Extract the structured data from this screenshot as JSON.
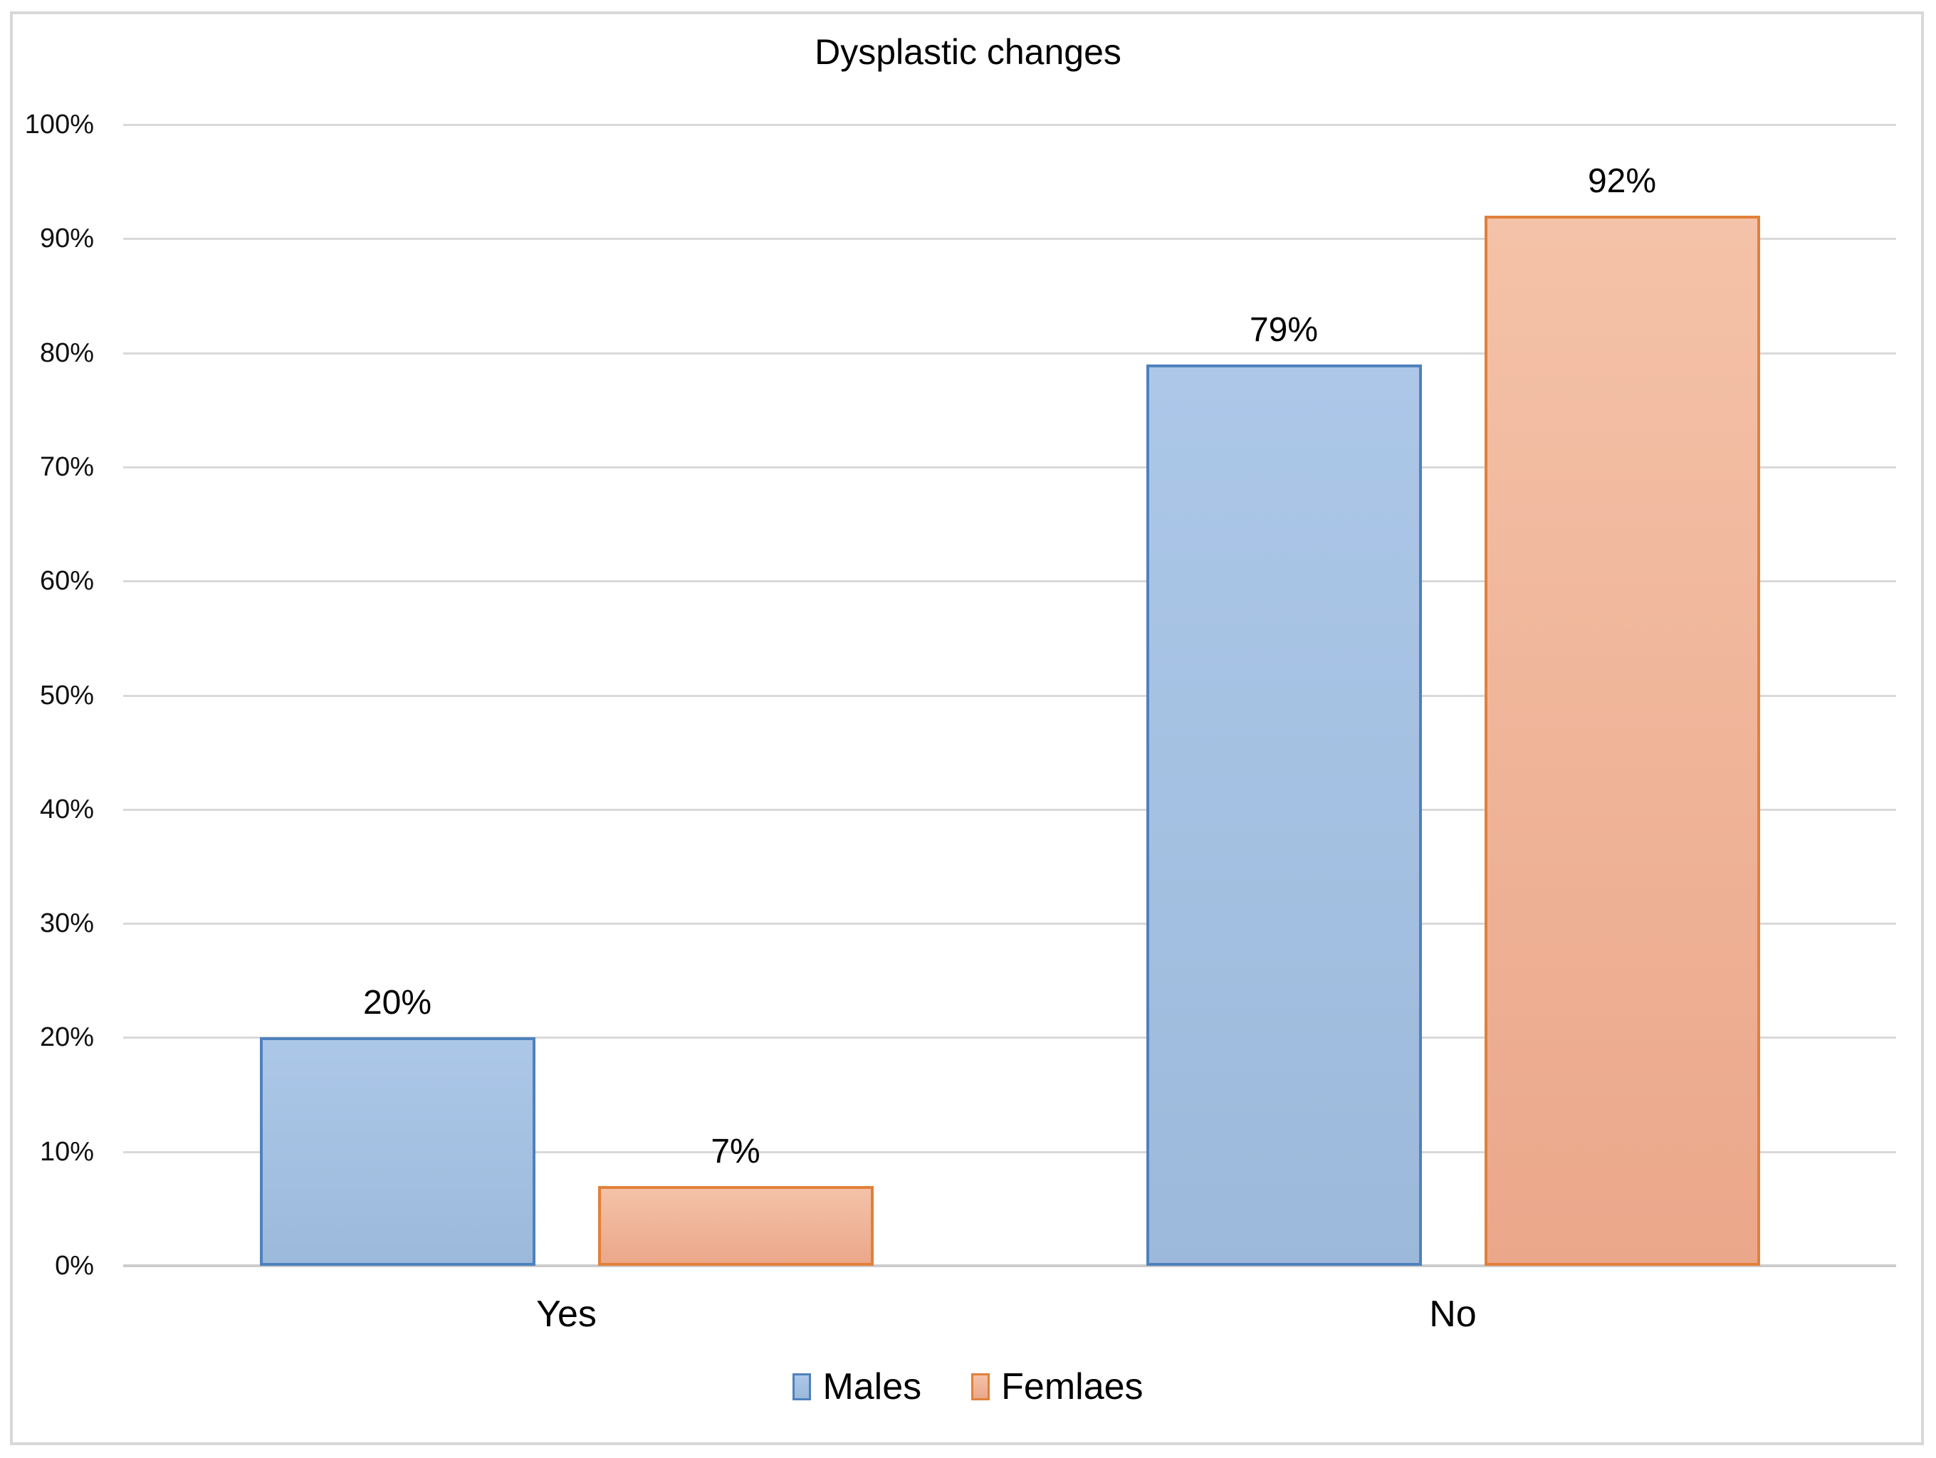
{
  "chart_data": {
    "type": "bar",
    "title": "Dysplastic changes",
    "categories": [
      "Yes",
      "No"
    ],
    "series": [
      {
        "name": "Males",
        "values": [
          20,
          79
        ],
        "labels": [
          "20%",
          "79%"
        ],
        "fill_top": "#ACC7E8",
        "fill_bottom": "#9CB9DB",
        "border": "#4F81BD"
      },
      {
        "name": "Femlaes",
        "values": [
          7,
          92
        ],
        "labels": [
          "7%",
          "92%"
        ],
        "fill_top": "#F4C2A8",
        "fill_bottom": "#EBA78A",
        "border": "#E2803A"
      }
    ],
    "xlabel": "",
    "ylabel": "",
    "ylim": [
      0,
      100
    ],
    "y_tick_step": 10,
    "y_tick_labels": [
      "0%",
      "10%",
      "20%",
      "30%",
      "40%",
      "50%",
      "60%",
      "70%",
      "80%",
      "90%",
      "100%"
    ],
    "grid": true,
    "legend_position": "bottom",
    "colors": {
      "gridline": "#D9D9D9",
      "axis_line": "#CCCCCC",
      "frame_border": "#D8D8D8",
      "text": "#000000",
      "background": "#FFFFFF"
    }
  }
}
